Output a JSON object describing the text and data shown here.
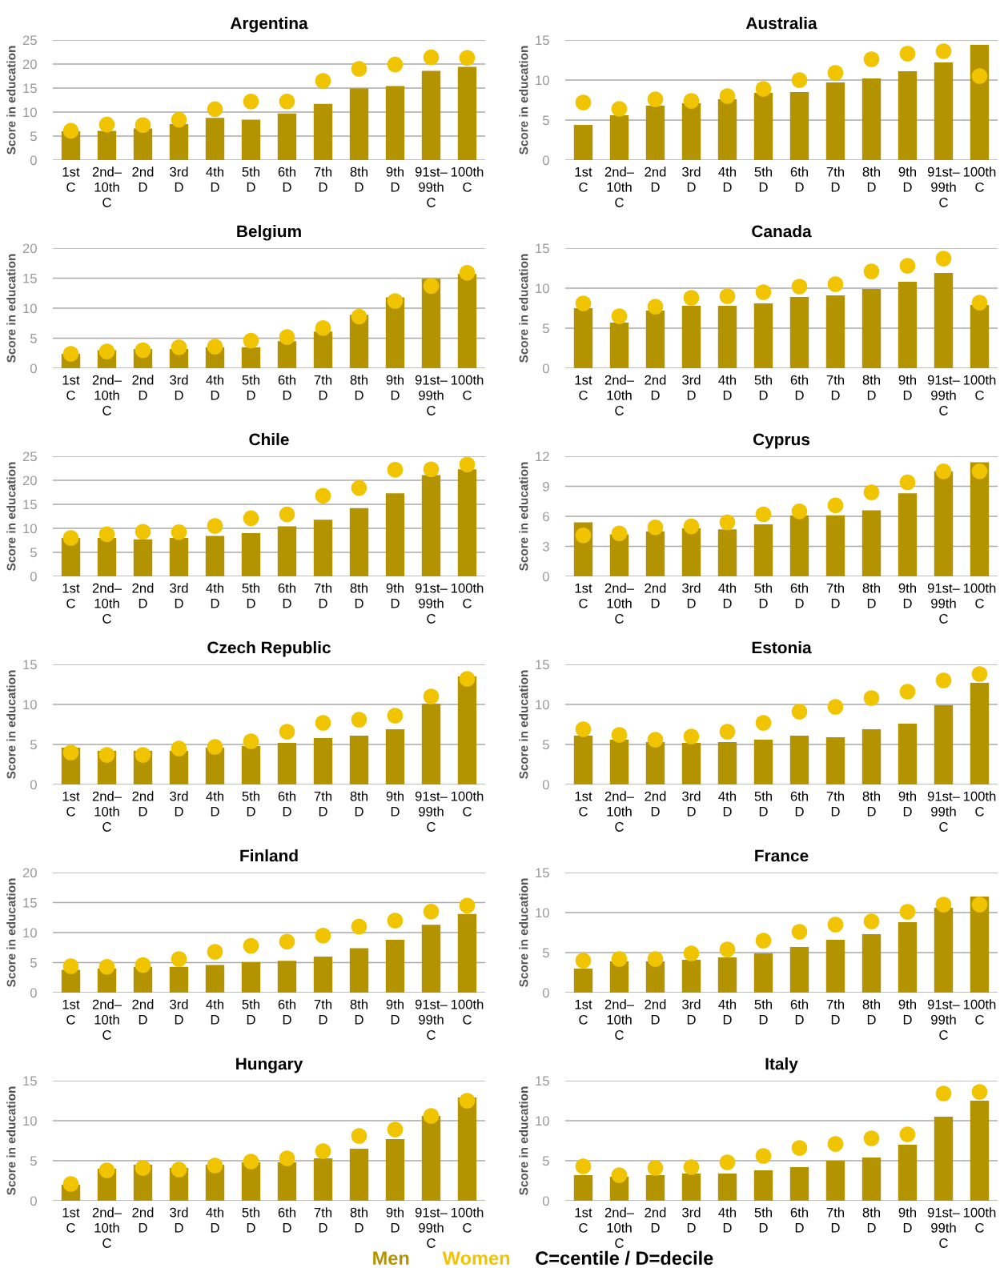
{
  "chart_data": [
    {
      "type": "bar",
      "title": "Argentina",
      "ylabel": "Score in education",
      "ylim": [
        0,
        25
      ],
      "yticks": [
        0,
        5,
        10,
        15,
        20,
        25
      ],
      "grid": "y",
      "legend": "bottom",
      "categories": [
        "1st\nC",
        "2nd–\n10th\nC",
        "2nd\nD",
        "3rd\nD",
        "4th\nD",
        "5th\nD",
        "6th\nD",
        "7th\nD",
        "8th\nD",
        "9th\nD",
        "91st–\n99th\nC",
        "100th\nC"
      ],
      "series": [
        {
          "name": "Men",
          "color": "#b39400",
          "values": [
            6.0,
            6.1,
            6.6,
            7.5,
            8.8,
            8.4,
            9.7,
            11.7,
            14.9,
            15.4,
            18.6,
            19.4
          ]
        },
        {
          "name": "Women",
          "type": "scatter",
          "marker": "circle",
          "color": "#f0c400",
          "values": [
            6.1,
            7.4,
            7.3,
            8.4,
            10.6,
            12.2,
            12.2,
            16.5,
            19.0,
            19.9,
            21.4,
            21.3
          ]
        }
      ]
    },
    {
      "type": "bar",
      "title": "Australia",
      "ylabel": "Score in education",
      "ylim": [
        0,
        15
      ],
      "yticks": [
        0,
        5,
        10,
        15
      ],
      "grid": "y",
      "categories": [
        "1st\nC",
        "2nd–\n10th\nC",
        "2nd\nD",
        "3rd\nD",
        "4th\nD",
        "5th\nD",
        "6th\nD",
        "7th\nD",
        "8th\nD",
        "9th\nD",
        "91st–\n99th\nC",
        "100th\nC"
      ],
      "series": [
        {
          "color": "#b39400",
          "values": [
            4.4,
            5.6,
            6.8,
            7.1,
            7.6,
            8.4,
            8.5,
            9.7,
            10.2,
            11.1,
            12.2,
            14.4
          ]
        },
        {
          "type": "scatter",
          "marker": "circle",
          "color": "#f0c400",
          "values": [
            7.2,
            6.4,
            7.6,
            7.4,
            8.0,
            8.9,
            10.0,
            10.9,
            12.6,
            13.3,
            13.6,
            10.5
          ]
        }
      ]
    },
    {
      "type": "bar",
      "title": "Belgium",
      "ylabel": "Score in education",
      "ylim": [
        0,
        20
      ],
      "yticks": [
        0,
        5,
        10,
        15,
        20
      ],
      "grid": "y",
      "categories": [
        "1st\nC",
        "2nd–\n10th\nC",
        "2nd\nD",
        "3rd\nD",
        "4th\nD",
        "5th\nD",
        "6th\nD",
        "7th\nD",
        "8th\nD",
        "9th\nD",
        "91st–\n99th\nC",
        "100th\nC"
      ],
      "series": [
        {
          "color": "#b39400",
          "values": [
            2.4,
            3.0,
            3.2,
            3.2,
            3.5,
            3.5,
            4.5,
            6.1,
            8.9,
            11.8,
            14.9,
            15.7
          ]
        },
        {
          "type": "scatter",
          "marker": "circle",
          "color": "#f0c400",
          "values": [
            2.4,
            2.8,
            3.0,
            3.5,
            3.6,
            4.6,
            5.2,
            6.7,
            8.6,
            11.2,
            13.7,
            15.9
          ]
        }
      ]
    },
    {
      "type": "bar",
      "title": "Canada",
      "ylabel": "Score in education",
      "ylim": [
        0,
        15
      ],
      "yticks": [
        0,
        5,
        10,
        15
      ],
      "grid": "y",
      "categories": [
        "1st\nC",
        "2nd–\n10th\nC",
        "2nd\nD",
        "3rd\nD",
        "4th\nD",
        "5th\nD",
        "6th\nD",
        "7th\nD",
        "8th\nD",
        "9th\nD",
        "91st–\n99th\nC",
        "100th\nC"
      ],
      "series": [
        {
          "color": "#b39400",
          "values": [
            7.5,
            5.7,
            7.2,
            7.8,
            7.8,
            8.1,
            8.9,
            9.1,
            9.9,
            10.8,
            11.9,
            7.9
          ]
        },
        {
          "type": "scatter",
          "marker": "circle",
          "color": "#f0c400",
          "values": [
            8.1,
            6.5,
            7.7,
            8.8,
            9.0,
            9.5,
            10.2,
            10.5,
            12.1,
            12.8,
            13.7,
            8.2
          ]
        }
      ]
    },
    {
      "type": "bar",
      "title": "Chile",
      "ylabel": "Score in education",
      "ylim": [
        0,
        25
      ],
      "yticks": [
        0,
        5,
        10,
        15,
        20,
        25
      ],
      "grid": "y",
      "categories": [
        "1st\nC",
        "2nd–\n10th\nC",
        "2nd\nD",
        "3rd\nD",
        "4th\nD",
        "5th\nD",
        "6th\nD",
        "7th\nD",
        "8th\nD",
        "9th\nD",
        "91st–\n99th\nC",
        "100th\nC"
      ],
      "series": [
        {
          "color": "#b39400",
          "values": [
            8.0,
            8.0,
            7.7,
            8.0,
            8.4,
            9.0,
            10.4,
            11.8,
            14.2,
            17.3,
            21.1,
            22.3
          ]
        },
        {
          "type": "scatter",
          "marker": "circle",
          "color": "#f0c400",
          "values": [
            8.0,
            8.8,
            9.3,
            9.2,
            10.5,
            12.1,
            12.9,
            16.8,
            18.4,
            22.2,
            22.3,
            23.3
          ]
        }
      ]
    },
    {
      "type": "bar",
      "title": "Cyprus",
      "ylabel": "Score in education",
      "ylim": [
        0,
        12
      ],
      "yticks": [
        0,
        3,
        6,
        9,
        12
      ],
      "grid": "y",
      "categories": [
        "1st\nC",
        "2nd–\n10th\nC",
        "2nd\nD",
        "3rd\nD",
        "4th\nD",
        "5th\nD",
        "6th\nD",
        "7th\nD",
        "8th\nD",
        "9th\nD",
        "91st–\n99th\nC",
        "100th\nC"
      ],
      "series": [
        {
          "color": "#b39400",
          "values": [
            5.4,
            4.2,
            4.5,
            4.8,
            4.7,
            5.2,
            6.1,
            6.1,
            6.6,
            8.3,
            10.5,
            11.4
          ]
        },
        {
          "type": "scatter",
          "marker": "circle",
          "color": "#f0c400",
          "values": [
            4.1,
            4.3,
            4.9,
            5.0,
            5.4,
            6.2,
            6.5,
            7.1,
            8.4,
            9.4,
            10.5,
            10.5
          ]
        }
      ]
    },
    {
      "type": "bar",
      "title": "Czech Republic",
      "ylabel": "Score in education",
      "ylim": [
        0,
        15
      ],
      "yticks": [
        0,
        5,
        10,
        15
      ],
      "grid": "y",
      "categories": [
        "1st\nC",
        "2nd–\n10th\nC",
        "2nd\nD",
        "3rd\nD",
        "4th\nD",
        "5th\nD",
        "6th\nD",
        "7th\nD",
        "8th\nD",
        "9th\nD",
        "91st–\n99th\nC",
        "100th\nC"
      ],
      "series": [
        {
          "color": "#b39400",
          "values": [
            4.6,
            4.2,
            4.2,
            4.2,
            4.6,
            4.8,
            5.2,
            5.8,
            6.1,
            6.9,
            10.1,
            13.5
          ]
        },
        {
          "type": "scatter",
          "marker": "circle",
          "color": "#f0c400",
          "values": [
            4.0,
            3.7,
            3.7,
            4.5,
            4.7,
            5.4,
            6.6,
            7.7,
            8.1,
            8.6,
            11.0,
            13.2
          ]
        }
      ]
    },
    {
      "type": "bar",
      "title": "Estonia",
      "ylabel": "Score in education",
      "ylim": [
        0,
        15
      ],
      "yticks": [
        0,
        5,
        10,
        15
      ],
      "grid": "y",
      "categories": [
        "1st\nC",
        "2nd–\n10th\nC",
        "2nd\nD",
        "3rd\nD",
        "4th\nD",
        "5th\nD",
        "6th\nD",
        "7th\nD",
        "8th\nD",
        "9th\nD",
        "91st–\n99th\nC",
        "100th\nC"
      ],
      "series": [
        {
          "color": "#b39400",
          "values": [
            6.1,
            5.6,
            5.3,
            5.2,
            5.3,
            5.6,
            6.1,
            5.9,
            6.9,
            7.6,
            9.9,
            12.7
          ]
        },
        {
          "type": "scatter",
          "marker": "circle",
          "color": "#f0c400",
          "values": [
            6.9,
            6.2,
            5.6,
            6.0,
            6.6,
            7.7,
            9.1,
            9.7,
            10.8,
            11.6,
            13.0,
            13.8
          ]
        }
      ]
    },
    {
      "type": "bar",
      "title": "Finland",
      "ylabel": "Score in education",
      "ylim": [
        0,
        20
      ],
      "yticks": [
        0,
        5,
        10,
        15,
        20
      ],
      "grid": "y",
      "categories": [
        "1st\nC",
        "2nd–\n10th\nC",
        "2nd\nD",
        "3rd\nD",
        "4th\nD",
        "5th\nD",
        "6th\nD",
        "7th\nD",
        "8th\nD",
        "9th\nD",
        "91st–\n99th\nC",
        "100th\nC"
      ],
      "series": [
        {
          "color": "#b39400",
          "values": [
            3.8,
            4.0,
            4.3,
            4.3,
            4.6,
            5.1,
            5.3,
            6.0,
            7.4,
            8.8,
            11.3,
            13.1
          ]
        },
        {
          "type": "scatter",
          "marker": "circle",
          "color": "#f0c400",
          "values": [
            4.4,
            4.3,
            4.6,
            5.6,
            6.8,
            7.8,
            8.5,
            9.5,
            11.0,
            12.0,
            13.5,
            14.5
          ]
        }
      ]
    },
    {
      "type": "bar",
      "title": "France",
      "ylabel": "Score in education",
      "ylim": [
        0,
        15
      ],
      "yticks": [
        0,
        5,
        10,
        15
      ],
      "grid": "y",
      "categories": [
        "1st\nC",
        "2nd–\n10th\nC",
        "2nd\nD",
        "3rd\nD",
        "4th\nD",
        "5th\nD",
        "6th\nD",
        "7th\nD",
        "8th\nD",
        "9th\nD",
        "91st–\n99th\nC",
        "100th\nC"
      ],
      "series": [
        {
          "color": "#b39400",
          "values": [
            3.0,
            3.9,
            3.9,
            4.1,
            4.4,
            4.9,
            5.7,
            6.6,
            7.3,
            8.8,
            10.6,
            12.0
          ]
        },
        {
          "type": "scatter",
          "marker": "circle",
          "color": "#f0c400",
          "values": [
            4.0,
            4.2,
            4.2,
            4.9,
            5.4,
            6.5,
            7.6,
            8.5,
            8.9,
            10.1,
            11.0,
            11.0
          ]
        }
      ]
    },
    {
      "type": "bar",
      "title": "Hungary",
      "ylabel": "Score in education",
      "ylim": [
        0,
        15
      ],
      "yticks": [
        0,
        5,
        10,
        15
      ],
      "grid": "y",
      "categories": [
        "1st\nC",
        "2nd–\n10th\nC",
        "2nd\nD",
        "3rd\nD",
        "4th\nD",
        "5th\nD",
        "6th\nD",
        "7th\nD",
        "8th\nD",
        "9th\nD",
        "91st–\n99th\nC",
        "100th\nC"
      ],
      "series": [
        {
          "color": "#b39400",
          "values": [
            2.0,
            4.0,
            4.5,
            4.1,
            4.5,
            4.8,
            4.8,
            5.3,
            6.5,
            7.7,
            10.6,
            12.9
          ]
        },
        {
          "type": "scatter",
          "marker": "circle",
          "color": "#f0c400",
          "values": [
            2.1,
            3.8,
            4.1,
            3.9,
            4.4,
            4.9,
            5.3,
            6.2,
            8.1,
            8.9,
            10.6,
            12.5
          ]
        }
      ]
    },
    {
      "type": "bar",
      "title": "Italy",
      "ylabel": "Score in education",
      "ylim": [
        0,
        15
      ],
      "yticks": [
        0,
        5,
        10,
        15
      ],
      "grid": "y",
      "annotations": [
        "C=centile / D=decile"
      ],
      "categories": [
        "1st\nC",
        "2nd–\n10th\nC",
        "2nd\nD",
        "3rd\nD",
        "4th\nD",
        "5th\nD",
        "6th\nD",
        "7th\nD",
        "8th\nD",
        "9th\nD",
        "91st–\n99th\nC",
        "100th\nC"
      ],
      "series": [
        {
          "color": "#b39400",
          "values": [
            3.2,
            3.0,
            3.2,
            3.4,
            3.4,
            3.8,
            4.2,
            5.0,
            5.4,
            7.0,
            10.5,
            12.5
          ]
        },
        {
          "type": "scatter",
          "marker": "circle",
          "color": "#f0c400",
          "values": [
            4.3,
            3.2,
            4.1,
            4.2,
            4.8,
            5.6,
            6.6,
            7.1,
            7.8,
            8.3,
            13.4,
            13.6
          ]
        }
      ]
    }
  ]
}
